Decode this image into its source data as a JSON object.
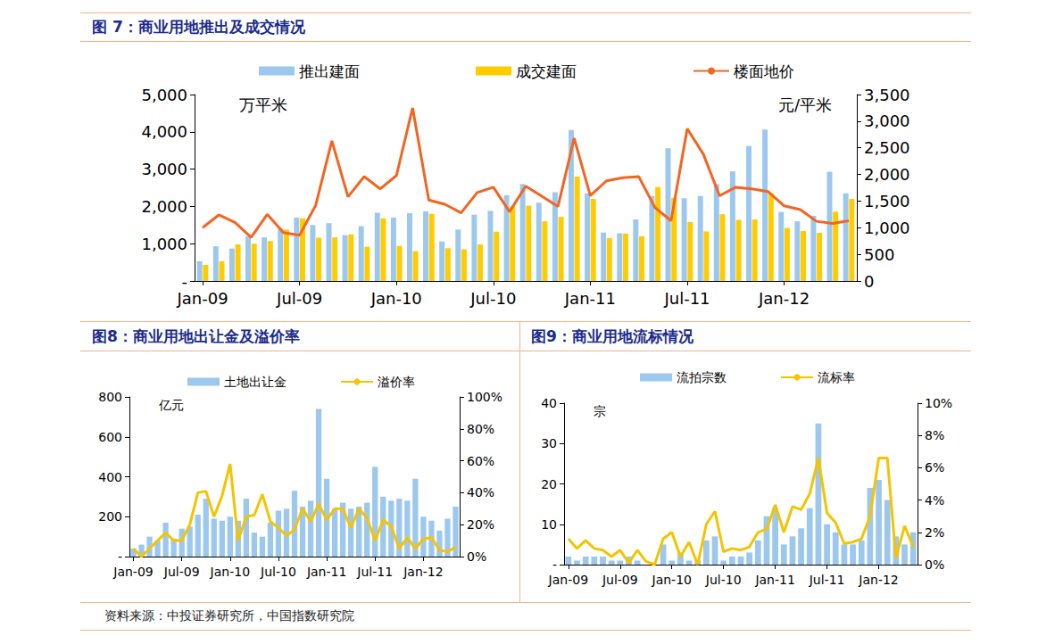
{
  "source": "资料来源：中投证券研究所，中国指数研究院",
  "chart_data": [
    {
      "title": "图 7：商业用地推出及成交情况",
      "type": "bar",
      "categories": [
        "Jan-09",
        null,
        null,
        null,
        null,
        null,
        "Jul-09",
        null,
        null,
        null,
        null,
        null,
        "Jan-10",
        null,
        null,
        null,
        null,
        null,
        "Jul-10",
        null,
        null,
        null,
        null,
        null,
        "Jan-11",
        null,
        null,
        null,
        null,
        null,
        "Jul-11",
        null,
        null,
        null,
        null,
        null,
        "Jan-12",
        null,
        null,
        null,
        null
      ],
      "series": [
        {
          "name": "推出建面",
          "type": "bar",
          "color": "#9dc8ee",
          "values": [
            530,
            930,
            870,
            1200,
            1170,
            1400,
            1700,
            1500,
            1550,
            1230,
            1470,
            1830,
            1700,
            1820,
            1870,
            1060,
            1380,
            1780,
            1880,
            2300,
            2600,
            2100,
            2380,
            4050,
            2350,
            1300,
            1280,
            1650,
            2280,
            3560,
            2220,
            2280,
            2600,
            2940,
            3620,
            4060,
            1850,
            1600,
            1750,
            2930,
            2350
          ]
        },
        {
          "name": "成交建面",
          "type": "bar",
          "color": "#ffcc00",
          "values": [
            430,
            530,
            980,
            1000,
            1070,
            1380,
            1680,
            1160,
            1170,
            1250,
            920,
            1680,
            940,
            800,
            1800,
            880,
            850,
            980,
            1320,
            2000,
            2020,
            1600,
            1720,
            2800,
            2200,
            1150,
            1270,
            1200,
            2520,
            2230,
            1580,
            1330,
            1790,
            1640,
            1650,
            2350,
            1420,
            1340,
            1290,
            1860,
            2200
          ]
        },
        {
          "name": "楼面地价",
          "type": "line",
          "axis": "y2",
          "color": "#f26522",
          "marker": "none",
          "values": [
            1000,
            1240,
            1100,
            820,
            1250,
            910,
            860,
            1420,
            2630,
            1580,
            1960,
            1730,
            1980,
            3250,
            1520,
            1440,
            1280,
            1660,
            1760,
            1300,
            1780,
            1590,
            1400,
            2680,
            1600,
            1880,
            1940,
            1960,
            1380,
            1130,
            2860,
            2380,
            1600,
            1760,
            1730,
            1680,
            1410,
            1340,
            1120,
            1080,
            1130
          ]
        }
      ],
      "ylabel": "万平米",
      "y2label": "元/平米",
      "ylim": [
        0,
        5000
      ],
      "yticks": [
        {
          "value": 0,
          "label": "-"
        },
        {
          "value": 1000,
          "label": "1,000"
        },
        {
          "value": 2000,
          "label": "2,000"
        },
        {
          "value": 3000,
          "label": "3,000"
        },
        {
          "value": 4000,
          "label": "4,000"
        },
        {
          "value": 5000,
          "label": "5,000"
        }
      ],
      "y2lim": [
        0,
        3500
      ],
      "y2ticks": [
        0,
        500,
        {
          "value": 1000,
          "label": "1,000"
        },
        {
          "value": 1500,
          "label": "1,500"
        },
        {
          "value": 2000,
          "label": "2,000"
        },
        {
          "value": 2500,
          "label": "2,500"
        },
        {
          "value": 3000,
          "label": "3,000"
        },
        {
          "value": 3500,
          "label": "3,500"
        }
      ],
      "legend": "top",
      "grid": false
    },
    {
      "title": "图8：商业用地出让金及溢价率",
      "type": "bar",
      "categories": [
        "Jan-09",
        null,
        null,
        null,
        null,
        null,
        "Jul-09",
        null,
        null,
        null,
        null,
        null,
        "Jan-10",
        null,
        null,
        null,
        null,
        null,
        "Jul-10",
        null,
        null,
        null,
        null,
        null,
        "Jan-11",
        null,
        null,
        null,
        null,
        null,
        "Jul-11",
        null,
        null,
        null,
        null,
        null,
        "Jan-12",
        null,
        null,
        null,
        null
      ],
      "series": [
        {
          "name": "土地出让金",
          "type": "bar",
          "color": "#9dc8ee",
          "values": [
            40,
            60,
            100,
            80,
            170,
            90,
            140,
            150,
            210,
            290,
            190,
            180,
            200,
            180,
            290,
            120,
            100,
            170,
            230,
            240,
            330,
            250,
            280,
            740,
            390,
            240,
            270,
            240,
            250,
            270,
            450,
            300,
            280,
            290,
            280,
            390,
            200,
            180,
            130,
            190,
            250
          ]
        },
        {
          "name": "溢价率",
          "type": "line",
          "axis": "y2",
          "color": "#f5c400",
          "marker": "none",
          "values": [
            5,
            0,
            5,
            10,
            15,
            10,
            10,
            20,
            40,
            41,
            25,
            38,
            58,
            10,
            25,
            26,
            39,
            22,
            18,
            13,
            17,
            30,
            22,
            33,
            23,
            30,
            30,
            18,
            30,
            24,
            10,
            23,
            19,
            5,
            12,
            5,
            11,
            12,
            4,
            3,
            6
          ]
        }
      ],
      "ylabel": "亿元",
      "ylim": [
        0,
        800
      ],
      "yticks": [
        {
          "value": 0,
          "label": "-"
        },
        200,
        400,
        600,
        800
      ],
      "y2lim": [
        0,
        100
      ],
      "y2ticks": [
        {
          "value": 0,
          "label": "0%"
        },
        {
          "value": 20,
          "label": "20%"
        },
        {
          "value": 40,
          "label": "40%"
        },
        {
          "value": 60,
          "label": "60%"
        },
        {
          "value": 80,
          "label": "80%"
        },
        {
          "value": 100,
          "label": "100%"
        }
      ],
      "legend": "top",
      "grid": false
    },
    {
      "title": "图9：商业用地流标情况",
      "type": "bar",
      "categories": [
        "Jan-09",
        null,
        null,
        null,
        null,
        null,
        "Jul-09",
        null,
        null,
        null,
        null,
        null,
        "Jan-10",
        null,
        null,
        null,
        null,
        null,
        "Jul-10",
        null,
        null,
        null,
        null,
        null,
        "Jan-11",
        null,
        null,
        null,
        null,
        null,
        "Jul-11",
        null,
        null,
        null,
        null,
        null,
        "Jan-12",
        null,
        null,
        null,
        null
      ],
      "series": [
        {
          "name": "流拍宗数",
          "type": "bar",
          "color": "#9dc8ee",
          "values": [
            2,
            1,
            2,
            2,
            2,
            1,
            1,
            2,
            1,
            0,
            0,
            5,
            1,
            3,
            1,
            1,
            6,
            7,
            1,
            2,
            2,
            3,
            6,
            12,
            14,
            5,
            7,
            9,
            14,
            35,
            10,
            8,
            5,
            5,
            6,
            19,
            21,
            16,
            7,
            5,
            8
          ]
        },
        {
          "name": "流标率",
          "type": "line",
          "axis": "y2",
          "color": "#f5c400",
          "marker": "none",
          "values": [
            1.6,
            1.0,
            1.5,
            1.0,
            0.9,
            0.5,
            0.9,
            0.1,
            0.9,
            0.2,
            0,
            1.6,
            2.0,
            0.5,
            1.4,
            0,
            2.5,
            3.3,
            0.8,
            1.0,
            0.9,
            1.1,
            2.0,
            2.2,
            3.7,
            2.0,
            3.6,
            3.4,
            4.4,
            6.6,
            3.2,
            2.6,
            1.3,
            1.4,
            1.6,
            3.0,
            6.6,
            6.6,
            0.4,
            2.4,
            1.1
          ]
        }
      ],
      "ylabel": "宗",
      "ylim": [
        0,
        40
      ],
      "yticks": [
        {
          "value": 0,
          "label": "-"
        },
        10,
        20,
        30,
        40
      ],
      "y2lim": [
        0,
        10
      ],
      "y2ticks": [
        {
          "value": 0,
          "label": "0%"
        },
        {
          "value": 2,
          "label": "2%"
        },
        {
          "value": 4,
          "label": "4%"
        },
        {
          "value": 6,
          "label": "6%"
        },
        {
          "value": 8,
          "label": "8%"
        },
        {
          "value": 10,
          "label": "10%"
        }
      ],
      "legend": "top",
      "grid": false
    }
  ]
}
